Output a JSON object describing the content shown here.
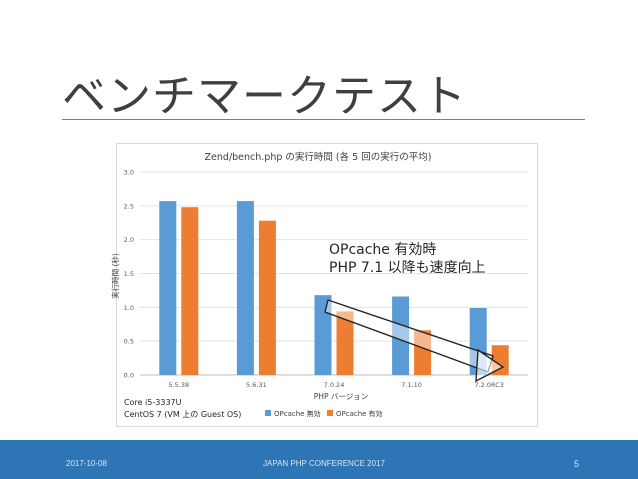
{
  "slide": {
    "title": "ベンチマークテスト",
    "annotation_lines": [
      "OPcache 有効時",
      "PHP 7.1 以降も速度向上"
    ],
    "environment_lines": [
      "Core i5-3337U",
      "CentOS 7 (VM 上の Guest OS)"
    ]
  },
  "footer": {
    "date": "2017-10-08",
    "conference": "JAPAN PHP CONFERENCE 2017",
    "page": "5"
  },
  "chart_data": {
    "type": "bar",
    "title": "Zend/bench.php の実行時間 (各 5 回の実行の平均)",
    "xlabel": "PHP バージョン",
    "ylabel": "実行時間 (秒)",
    "ylim": [
      0,
      3.0
    ],
    "yticks": [
      "0.0",
      "0.5",
      "1.0",
      "1.5",
      "2.0",
      "2.5",
      "3.0"
    ],
    "grid": true,
    "legend": "bottom",
    "categories": [
      "5.5.38",
      "5.6.31",
      "7.0.24",
      "7.1.10",
      "7.2.0RC3"
    ],
    "series": [
      {
        "name": "OPcache 無効",
        "color": "#5b9bd5",
        "values": [
          2.57,
          2.57,
          1.18,
          1.16,
          0.99
        ]
      },
      {
        "name": "OPcache 有効",
        "color": "#ed7d31",
        "values": [
          2.48,
          2.28,
          0.94,
          0.66,
          0.44
        ]
      }
    ]
  }
}
